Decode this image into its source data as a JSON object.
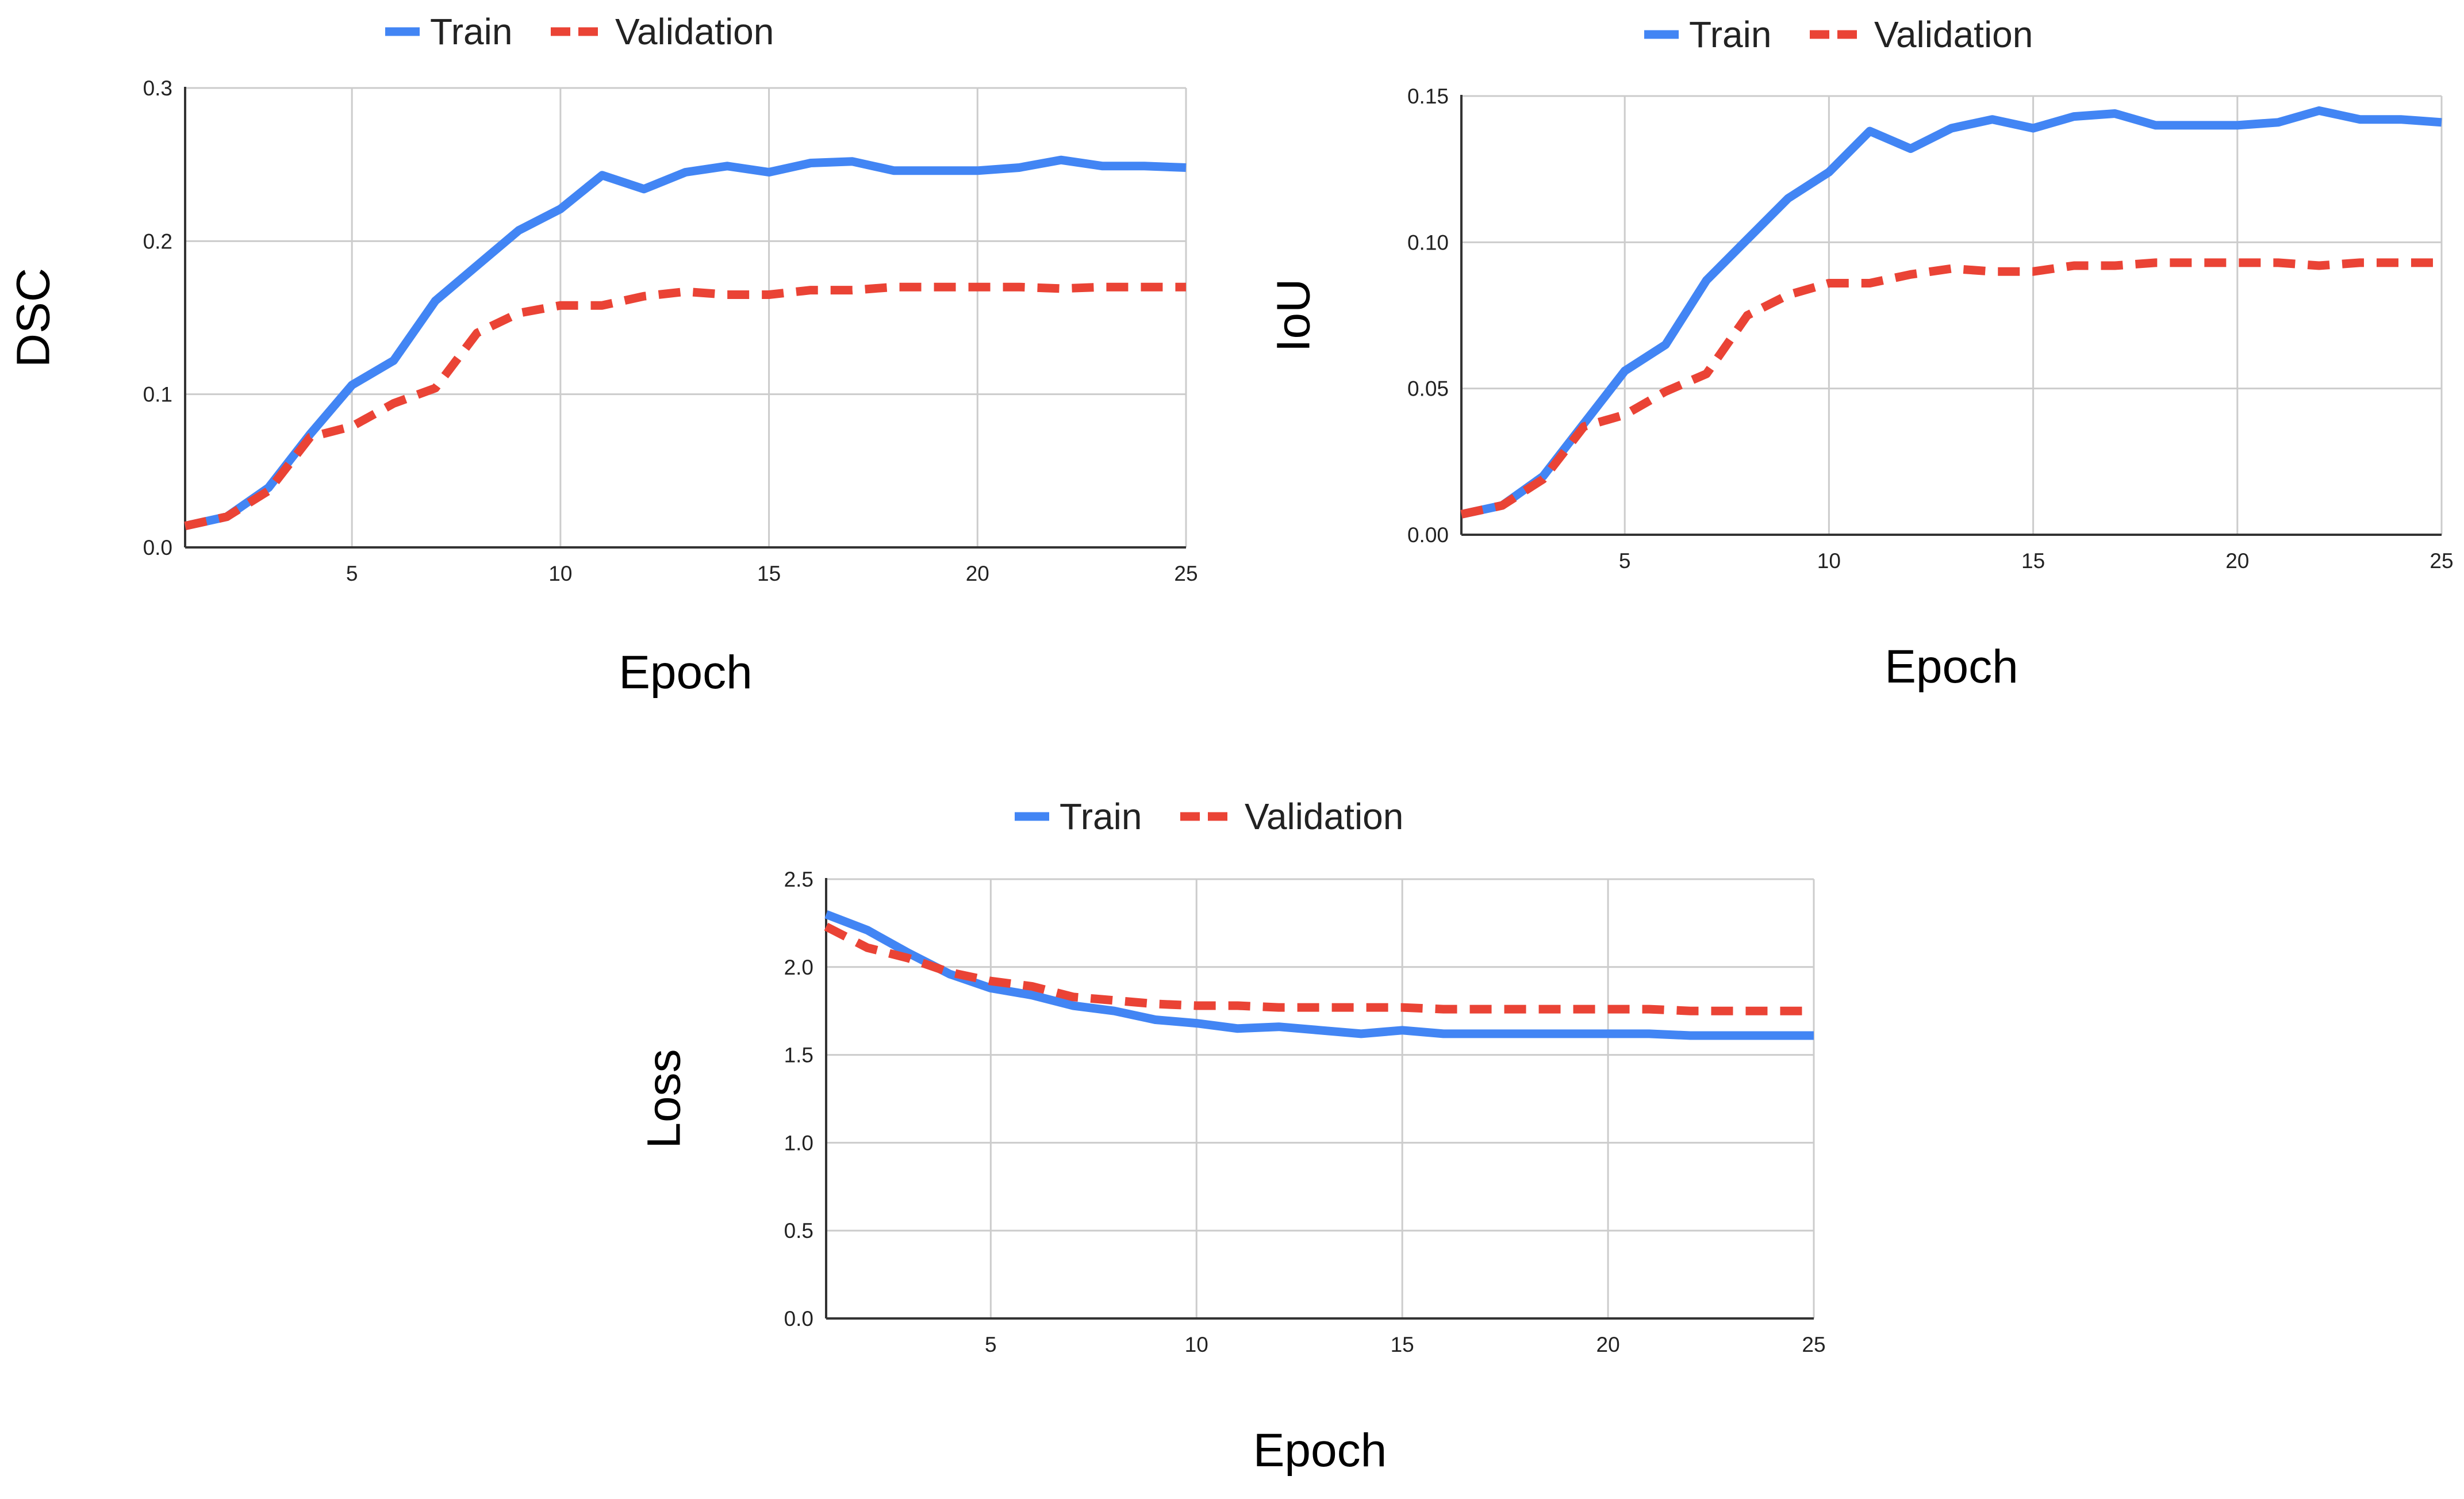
{
  "colors": {
    "train": "#4285F4",
    "validation": "#EA4335",
    "grid": "#cccccc",
    "axis": "#333333"
  },
  "chart_data": [
    {
      "type": "line",
      "ylabel": "DSC",
      "xlabel": "Epoch",
      "xlim": [
        1,
        25
      ],
      "ylim": [
        0,
        0.3
      ],
      "xticks": [
        5,
        10,
        15,
        20,
        25
      ],
      "xtick_labels": [
        "5",
        "10",
        "15",
        "20",
        "25"
      ],
      "yticks": [
        0,
        0.1,
        0.2,
        0.3
      ],
      "ytick_labels": [
        "0.0",
        "0.1",
        "0.2",
        "0.3"
      ],
      "grid": true,
      "legend_position": "top",
      "x": [
        1,
        2,
        3,
        4,
        5,
        6,
        7,
        8,
        9,
        10,
        11,
        12,
        13,
        14,
        15,
        16,
        17,
        18,
        19,
        20,
        21,
        22,
        23,
        24,
        25
      ],
      "series": [
        {
          "name": "Train",
          "style": "solid",
          "values": [
            0.014,
            0.02,
            0.039,
            0.074,
            0.106,
            0.122,
            0.161,
            0.184,
            0.207,
            0.221,
            0.243,
            0.234,
            0.245,
            0.249,
            0.245,
            0.251,
            0.252,
            0.246,
            0.246,
            0.246,
            0.248,
            0.253,
            0.249,
            0.249,
            0.248
          ]
        },
        {
          "name": "Validation",
          "style": "dashed",
          "values": [
            0.014,
            0.02,
            0.037,
            0.072,
            0.079,
            0.094,
            0.104,
            0.14,
            0.153,
            0.158,
            0.158,
            0.164,
            0.167,
            0.165,
            0.165,
            0.168,
            0.168,
            0.17,
            0.17,
            0.17,
            0.17,
            0.169,
            0.17,
            0.17,
            0.17
          ]
        }
      ]
    },
    {
      "type": "line",
      "ylabel": "IoU",
      "xlabel": "Epoch",
      "xlim": [
        1,
        25
      ],
      "ylim": [
        0,
        0.15
      ],
      "xticks": [
        5,
        10,
        15,
        20,
        25
      ],
      "xtick_labels": [
        "5",
        "10",
        "15",
        "20",
        "25"
      ],
      "yticks": [
        0,
        0.05,
        0.1,
        0.15
      ],
      "ytick_labels": [
        "0.00",
        "0.05",
        "0.10",
        "0.15"
      ],
      "grid": true,
      "legend_position": "top",
      "x": [
        1,
        2,
        3,
        4,
        5,
        6,
        7,
        8,
        9,
        10,
        11,
        12,
        13,
        14,
        15,
        16,
        17,
        18,
        19,
        20,
        21,
        22,
        23,
        24,
        25
      ],
      "series": [
        {
          "name": "Train",
          "style": "solid",
          "values": [
            0.007,
            0.01,
            0.02,
            0.038,
            0.056,
            0.065,
            0.087,
            0.101,
            0.115,
            0.124,
            0.138,
            0.132,
            0.139,
            0.142,
            0.139,
            0.143,
            0.144,
            0.14,
            0.14,
            0.14,
            0.141,
            0.145,
            0.142,
            0.142,
            0.141
          ]
        },
        {
          "name": "Validation",
          "style": "dashed",
          "values": [
            0.007,
            0.01,
            0.019,
            0.037,
            0.041,
            0.049,
            0.055,
            0.075,
            0.082,
            0.086,
            0.086,
            0.089,
            0.091,
            0.09,
            0.09,
            0.092,
            0.092,
            0.093,
            0.093,
            0.093,
            0.093,
            0.092,
            0.093,
            0.093,
            0.093
          ]
        }
      ]
    },
    {
      "type": "line",
      "ylabel": "Loss",
      "xlabel": "Epoch",
      "xlim": [
        1,
        25
      ],
      "ylim": [
        0,
        2.5
      ],
      "xticks": [
        5,
        10,
        15,
        20,
        25
      ],
      "xtick_labels": [
        "5",
        "10",
        "15",
        "20",
        "25"
      ],
      "yticks": [
        0,
        0.5,
        1.0,
        1.5,
        2.0,
        2.5
      ],
      "ytick_labels": [
        "0.0",
        "0.5",
        "1.0",
        "1.5",
        "2.0",
        "2.5"
      ],
      "grid": true,
      "legend_position": "top",
      "x": [
        1,
        2,
        3,
        4,
        5,
        6,
        7,
        8,
        9,
        10,
        11,
        12,
        13,
        14,
        15,
        16,
        17,
        18,
        19,
        20,
        21,
        22,
        23,
        24,
        25
      ],
      "series": [
        {
          "name": "Train",
          "style": "solid",
          "values": [
            2.3,
            2.21,
            2.08,
            1.96,
            1.88,
            1.84,
            1.78,
            1.75,
            1.7,
            1.68,
            1.65,
            1.66,
            1.64,
            1.62,
            1.64,
            1.62,
            1.62,
            1.62,
            1.62,
            1.62,
            1.62,
            1.61,
            1.61,
            1.61,
            1.61
          ]
        },
        {
          "name": "Validation",
          "style": "dashed",
          "values": [
            2.23,
            2.11,
            2.05,
            1.97,
            1.92,
            1.89,
            1.83,
            1.81,
            1.79,
            1.78,
            1.78,
            1.77,
            1.77,
            1.77,
            1.77,
            1.76,
            1.76,
            1.76,
            1.76,
            1.76,
            1.76,
            1.75,
            1.75,
            1.75,
            1.75
          ]
        }
      ]
    }
  ]
}
